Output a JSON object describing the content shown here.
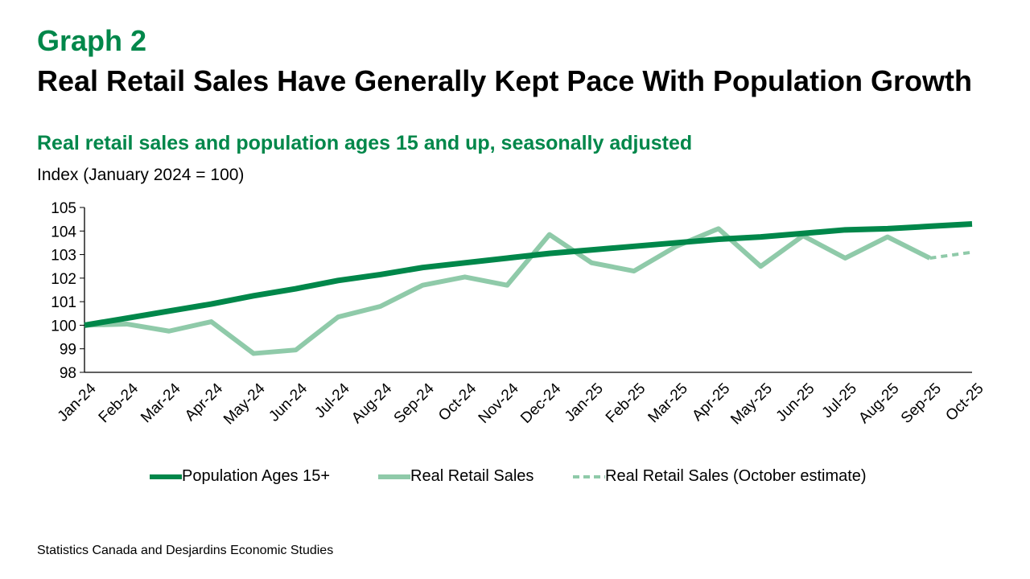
{
  "header": {
    "graph_label": "Graph 2",
    "title": "Real Retail Sales Have Generally Kept Pace With Population Growth",
    "subtitle": "Real retail sales and population ages 15 and up, seasonally adjusted",
    "unit": "Index (January 2024 = 100)"
  },
  "source": "Statistics Canada and Desjardins Economic Studies",
  "colors": {
    "population": "#00874a",
    "sales": "#8fcaa9"
  },
  "chart_data": {
    "type": "line",
    "title": "Real retail sales and population ages 15 and up, seasonally adjusted",
    "ylabel": "Index (January 2024 = 100)",
    "ylim": [
      98,
      105
    ],
    "yticks": [
      "98",
      "99",
      "100",
      "101",
      "102",
      "103",
      "104",
      "105"
    ],
    "categories": [
      "Jan-24",
      "Feb-24",
      "Mar-24",
      "Apr-24",
      "May-24",
      "Jun-24",
      "Jul-24",
      "Aug-24",
      "Sep-24",
      "Oct-24",
      "Nov-24",
      "Dec-24",
      "Jan-25",
      "Feb-25",
      "Mar-25",
      "Apr-25",
      "May-25",
      "Jun-25",
      "Jul-25",
      "Aug-25",
      "Sep-25",
      "Oct-25"
    ],
    "series": [
      {
        "name": "Population Ages 15+",
        "values": [
          100,
          100.3,
          100.6,
          100.9,
          101.25,
          101.55,
          101.9,
          102.15,
          102.45,
          102.65,
          102.85,
          103.05,
          103.2,
          103.35,
          103.5,
          103.65,
          103.75,
          103.9,
          104.05,
          104.1,
          104.2,
          104.3
        ]
      },
      {
        "name": "Real Retail Sales",
        "values": [
          100,
          100.05,
          99.75,
          100.15,
          98.8,
          98.95,
          100.35,
          100.8,
          101.7,
          102.05,
          101.7,
          103.85,
          102.65,
          102.3,
          103.35,
          104.1,
          102.5,
          103.8,
          102.85,
          103.75,
          102.85,
          null
        ]
      },
      {
        "name": "Real Retail Sales (October estimate)",
        "values": [
          null,
          null,
          null,
          null,
          null,
          null,
          null,
          null,
          null,
          null,
          null,
          null,
          null,
          null,
          null,
          null,
          null,
          null,
          null,
          null,
          102.85,
          103.1
        ]
      }
    ],
    "legend": "bottom",
    "grid": false
  }
}
